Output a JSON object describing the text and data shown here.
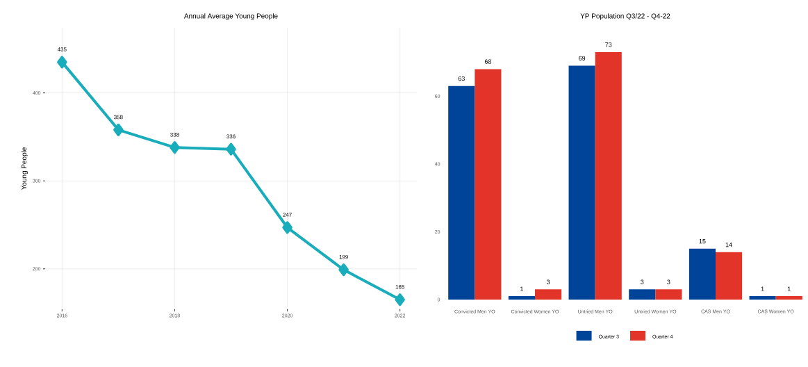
{
  "chart_data": [
    {
      "type": "line",
      "title": "Annual Average Young People",
      "ylabel": "Young People",
      "x": [
        2016,
        2017,
        2018,
        2019,
        2020,
        2021,
        2022
      ],
      "series": [
        {
          "color": "#19adbb",
          "values": [
            435,
            358,
            338,
            336,
            247,
            199,
            165
          ]
        }
      ],
      "xlim": [
        2015.7,
        2022.3
      ],
      "xticks": [
        2016,
        2018,
        2020,
        2022
      ],
      "ylim": [
        154,
        474
      ],
      "yticks": [
        200,
        300,
        400
      ],
      "grid": true,
      "marker": "diamond",
      "line_style": "solid",
      "data_labels": true
    },
    {
      "type": "bar",
      "title": "YP Population Q3/22 - Q4-22",
      "categories": [
        "Convicted Men YO",
        "Convicted Women YO",
        "Untried Men YO",
        "Untried Women YO",
        "CAS Men YO",
        "CAS Women YO"
      ],
      "series": [
        {
          "name": "Quarter 3",
          "color": "#00449a",
          "values": [
            63,
            1,
            69,
            3,
            15,
            1
          ]
        },
        {
          "name": "Quarter 4",
          "color": "#e3342a",
          "values": [
            68,
            3,
            73,
            3,
            14,
            1
          ]
        }
      ],
      "ylim": [
        0,
        73
      ],
      "yticks": [
        0,
        20,
        40,
        60
      ],
      "legend": "bottom",
      "data_labels": true
    }
  ]
}
